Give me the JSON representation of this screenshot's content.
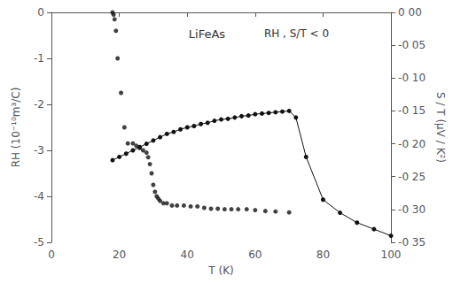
{
  "chart_data": {
    "type": "combo",
    "title": "LiFeAs",
    "annotation": "RH , S/T < 0",
    "xlabel": "T (K)",
    "ylabel": "RH (10⁻¹⁰m³/C)",
    "y2label": "S / T (μV / K²)",
    "xlim": [
      0,
      100
    ],
    "xticks": [
      0,
      20,
      40,
      60,
      80,
      100
    ],
    "ylim": [
      -5,
      0
    ],
    "yticks": [
      -5,
      -4,
      -3,
      -2,
      -1,
      0
    ],
    "y2lim": [
      -0.35,
      0
    ],
    "y2ticks": [
      {
        "value": -0.35,
        "label": "-0 35"
      },
      {
        "value": -0.3,
        "label": "-0 30"
      },
      {
        "value": -0.25,
        "label": "-0 25"
      },
      {
        "value": -0.2,
        "label": "-0 20"
      },
      {
        "value": -0.15,
        "label": "-0 15"
      },
      {
        "value": -0.1,
        "label": "-0 10"
      },
      {
        "value": -0.05,
        "label": "-0 05"
      },
      {
        "value": 0,
        "label": "0 00"
      }
    ],
    "grid": false,
    "series": [
      {
        "type": "scatter",
        "color": "#111111",
        "marker": "circle",
        "x": [
          18.0,
          18.3,
          18.6,
          19.0,
          19.5,
          20.5,
          21.5,
          22.5,
          24.0,
          25.0,
          26.0,
          27.0,
          28.0,
          28.5,
          29.0,
          29.5,
          30.0,
          30.5,
          31.0,
          31.5,
          32.0,
          33.0,
          34.0,
          35.5,
          37.0,
          39.0,
          41.0,
          43.0,
          45.0,
          47.0,
          49.0,
          51.0,
          53.0,
          55.0,
          57.5,
          60.0,
          63.0,
          66.0,
          70.0
        ],
        "values": [
          0.0,
          -0.05,
          -0.15,
          -0.4,
          -1.0,
          -1.75,
          -2.5,
          -2.85,
          -2.85,
          -2.9,
          -2.95,
          -3.0,
          -3.05,
          -3.15,
          -3.3,
          -3.5,
          -3.75,
          -3.9,
          -4.0,
          -4.05,
          -4.1,
          -4.15,
          -4.15,
          -4.2,
          -4.2,
          -4.2,
          -4.22,
          -4.22,
          -4.25,
          -4.27,
          -4.27,
          -4.28,
          -4.28,
          -4.28,
          -4.28,
          -4.3,
          -4.32,
          -4.33,
          -4.35
        ]
      },
      {
        "type": "line",
        "axis": "y2",
        "color": "#111111",
        "marker": "circle",
        "x": [
          18,
          20,
          22,
          24,
          26,
          28,
          30,
          32,
          34,
          36,
          38,
          40,
          42,
          44,
          46,
          48,
          50,
          52,
          54,
          56,
          58,
          60,
          62,
          64,
          66,
          68,
          70,
          72,
          75,
          80,
          85,
          90,
          95,
          100
        ],
        "values": [
          -0.225,
          -0.22,
          -0.215,
          -0.21,
          -0.205,
          -0.2,
          -0.195,
          -0.19,
          -0.185,
          -0.182,
          -0.178,
          -0.175,
          -0.173,
          -0.17,
          -0.168,
          -0.165,
          -0.163,
          -0.162,
          -0.16,
          -0.158,
          -0.157,
          -0.155,
          -0.154,
          -0.153,
          -0.152,
          -0.151,
          -0.15,
          -0.16,
          -0.22,
          -0.285,
          -0.305,
          -0.32,
          -0.33,
          -0.34
        ]
      }
    ]
  }
}
